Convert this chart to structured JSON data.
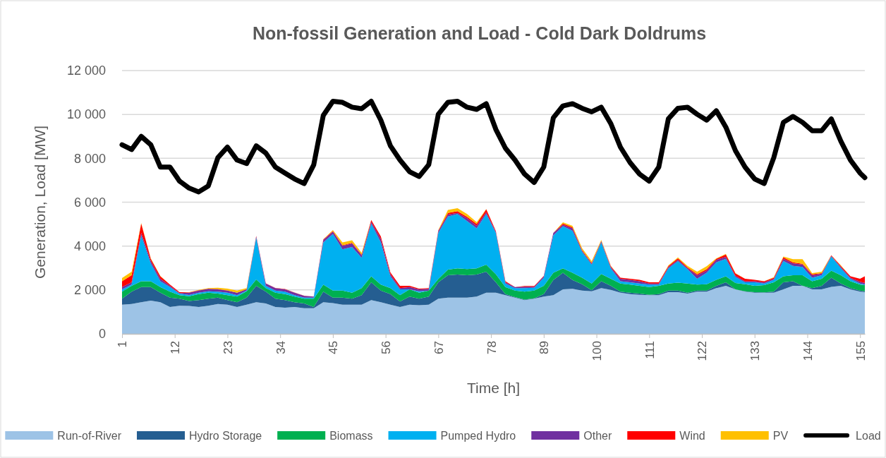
{
  "chart_data": {
    "type": "area",
    "stacked": true,
    "title": "Non-fossil Generation and Load - Cold Dark Doldrums",
    "xlabel": "Time [h]",
    "ylabel": "Generation, Load [MW]",
    "x": [
      1,
      3,
      5,
      7,
      9,
      11,
      13,
      15,
      17,
      19,
      21,
      23,
      25,
      27,
      29,
      31,
      33,
      35,
      37,
      39,
      41,
      43,
      45,
      47,
      49,
      51,
      53,
      55,
      57,
      59,
      61,
      63,
      65,
      67,
      69,
      71,
      73,
      75,
      77,
      79,
      81,
      83,
      85,
      87,
      89,
      91,
      93,
      95,
      97,
      99,
      101,
      103,
      105,
      107,
      109,
      111,
      113,
      115,
      117,
      119,
      121,
      123,
      125,
      127,
      129,
      131,
      133,
      135,
      137,
      139,
      141,
      143,
      145,
      147,
      149,
      151,
      153,
      155,
      156
    ],
    "xlim": [
      1,
      156
    ],
    "xticks": [
      1,
      12,
      23,
      34,
      45,
      56,
      67,
      78,
      89,
      100,
      111,
      122,
      133,
      144,
      155
    ],
    "ylim": [
      0,
      12000
    ],
    "yticks": [
      0,
      {
        "value": 2000,
        "label": "2 000"
      },
      {
        "value": 4000,
        "label": "4 000"
      },
      {
        "value": 6000,
        "label": "6 000"
      },
      {
        "value": 8000,
        "label": "8 000"
      },
      {
        "value": 10000,
        "label": "10 000"
      },
      {
        "value": 12000,
        "label": "12 000"
      }
    ],
    "grid": "y",
    "legend": "bottom",
    "series": [
      {
        "name": "Run-of-River",
        "color": "#9dc3e6",
        "values": [
          1330,
          1360,
          1440,
          1510,
          1440,
          1220,
          1280,
          1270,
          1220,
          1280,
          1360,
          1330,
          1220,
          1330,
          1440,
          1380,
          1220,
          1190,
          1220,
          1170,
          1170,
          1440,
          1400,
          1330,
          1330,
          1330,
          1540,
          1440,
          1330,
          1220,
          1330,
          1300,
          1330,
          1600,
          1650,
          1650,
          1650,
          1700,
          1870,
          1870,
          1760,
          1650,
          1540,
          1600,
          1700,
          1760,
          2030,
          2050,
          1970,
          1940,
          2080,
          2000,
          1870,
          1810,
          1780,
          1760,
          1760,
          1900,
          1900,
          1830,
          1920,
          1920,
          2080,
          2190,
          2030,
          1920,
          1870,
          1870,
          1870,
          2030,
          2190,
          2190,
          2030,
          2030,
          2140,
          2190,
          2030,
          1920,
          1900
        ]
      },
      {
        "name": "Hydro Storage",
        "color": "#255e91",
        "values": [
          270,
          560,
          690,
          620,
          430,
          430,
          320,
          230,
          320,
          320,
          290,
          210,
          220,
          320,
          750,
          540,
          380,
          350,
          220,
          210,
          50,
          480,
          250,
          320,
          270,
          430,
          810,
          530,
          480,
          250,
          370,
          300,
          370,
          750,
          1020,
          1050,
          1020,
          1000,
          960,
          480,
          50,
          20,
          20,
          20,
          110,
          690,
          750,
          400,
          290,
          50,
          320,
          190,
          50,
          60,
          50,
          20,
          50,
          70,
          70,
          40,
          50,
          50,
          110,
          160,
          0,
          20,
          30,
          20,
          50,
          320,
          210,
          0,
          50,
          160,
          420,
          100,
          50,
          50,
          40
        ]
      },
      {
        "name": "Biomass",
        "color": "#00b050",
        "values": [
          320,
          270,
          270,
          270,
          260,
          270,
          160,
          210,
          270,
          270,
          180,
          220,
          260,
          290,
          290,
          160,
          270,
          270,
          260,
          220,
          380,
          320,
          320,
          320,
          270,
          320,
          270,
          270,
          270,
          290,
          330,
          270,
          270,
          150,
          260,
          280,
          280,
          280,
          320,
          370,
          320,
          300,
          360,
          350,
          380,
          330,
          200,
          330,
          300,
          300,
          330,
          320,
          370,
          370,
          360,
          350,
          380,
          320,
          360,
          420,
          270,
          290,
          270,
          270,
          290,
          320,
          290,
          330,
          430,
          270,
          270,
          480,
          320,
          320,
          320,
          380,
          320,
          270,
          280
        ]
      },
      {
        "name": "Pumped Hydro",
        "color": "#00b0f0",
        "values": [
          110,
          50,
          2090,
          810,
          270,
          210,
          70,
          60,
          60,
          70,
          90,
          110,
          60,
          30,
          1900,
          110,
          100,
          110,
          60,
          50,
          50,
          1930,
          2580,
          1880,
          2090,
          1390,
          2410,
          1930,
          540,
          270,
          0,
          70,
          0,
          2100,
          2420,
          2480,
          2190,
          1830,
          2310,
          1880,
          160,
          110,
          160,
          130,
          370,
          1710,
          1930,
          1920,
          1180,
          860,
          1440,
          470,
          110,
          110,
          100,
          110,
          50,
          690,
          980,
          650,
          270,
          520,
          800,
          800,
          270,
          90,
          160,
          70,
          110,
          700,
          430,
          380,
          160,
          160,
          650,
          320,
          110,
          50,
          20
        ]
      },
      {
        "name": "Other",
        "color": "#7030a0",
        "values": [
          100,
          110,
          110,
          110,
          110,
          60,
          30,
          100,
          100,
          110,
          110,
          100,
          110,
          60,
          60,
          100,
          110,
          110,
          110,
          80,
          50,
          110,
          110,
          160,
          160,
          110,
          80,
          160,
          100,
          50,
          100,
          90,
          80,
          90,
          90,
          50,
          130,
          110,
          80,
          60,
          60,
          50,
          70,
          50,
          60,
          110,
          60,
          110,
          50,
          50,
          50,
          60,
          110,
          110,
          110,
          50,
          50,
          60,
          60,
          50,
          160,
          100,
          110,
          90,
          60,
          50,
          50,
          60,
          50,
          100,
          110,
          110,
          110,
          70,
          20,
          60,
          50,
          80,
          80
        ]
      },
      {
        "name": "Wind",
        "color": "#ff0000",
        "values": [
          270,
          320,
          430,
          100,
          110,
          50,
          40,
          20,
          20,
          10,
          10,
          10,
          0,
          10,
          20,
          10,
          10,
          10,
          10,
          10,
          0,
          20,
          30,
          30,
          30,
          30,
          80,
          110,
          80,
          110,
          60,
          30,
          30,
          20,
          70,
          80,
          60,
          90,
          140,
          30,
          50,
          0,
          30,
          30,
          20,
          0,
          60,
          50,
          30,
          30,
          20,
          40,
          50,
          50,
          60,
          60,
          60,
          50,
          70,
          40,
          50,
          60,
          50,
          110,
          100,
          110,
          60,
          50,
          50,
          70,
          50,
          30,
          50,
          30,
          30,
          50,
          60,
          140,
          300
        ]
      },
      {
        "name": "PV",
        "color": "#ffc000",
        "values": [
          140,
          160,
          20,
          20,
          20,
          0,
          0,
          10,
          10,
          20,
          60,
          80,
          100,
          40,
          0,
          0,
          0,
          0,
          0,
          0,
          0,
          10,
          40,
          130,
          110,
          80,
          0,
          0,
          0,
          0,
          0,
          0,
          0,
          20,
          140,
          140,
          130,
          80,
          10,
          0,
          0,
          0,
          0,
          0,
          0,
          0,
          50,
          60,
          80,
          80,
          40,
          20,
          0,
          0,
          0,
          0,
          0,
          30,
          40,
          70,
          110,
          140,
          20,
          20,
          20,
          0,
          0,
          0,
          20,
          30,
          140,
          210,
          50,
          60,
          0,
          20,
          0,
          0,
          0
        ]
      },
      {
        "name": "Load",
        "type": "line",
        "color": "#000000",
        "values": [
          8620,
          8400,
          9000,
          8620,
          7600,
          7600,
          6960,
          6640,
          6470,
          6740,
          8030,
          8510,
          7920,
          7760,
          8570,
          8240,
          7600,
          7330,
          7060,
          6850,
          7700,
          9960,
          10600,
          10550,
          10330,
          10260,
          10600,
          9740,
          8570,
          7920,
          7390,
          7170,
          7710,
          10010,
          10550,
          10600,
          10330,
          10230,
          10490,
          9320,
          8460,
          7920,
          7280,
          6900,
          7600,
          9850,
          10390,
          10490,
          10280,
          10120,
          10330,
          9580,
          8510,
          7810,
          7280,
          6960,
          7600,
          9800,
          10280,
          10330,
          10010,
          9740,
          10170,
          9420,
          8350,
          7600,
          7060,
          6850,
          8030,
          9640,
          9910,
          9640,
          9260,
          9260,
          9800,
          8780,
          7920,
          7330,
          7120
        ]
      }
    ]
  }
}
